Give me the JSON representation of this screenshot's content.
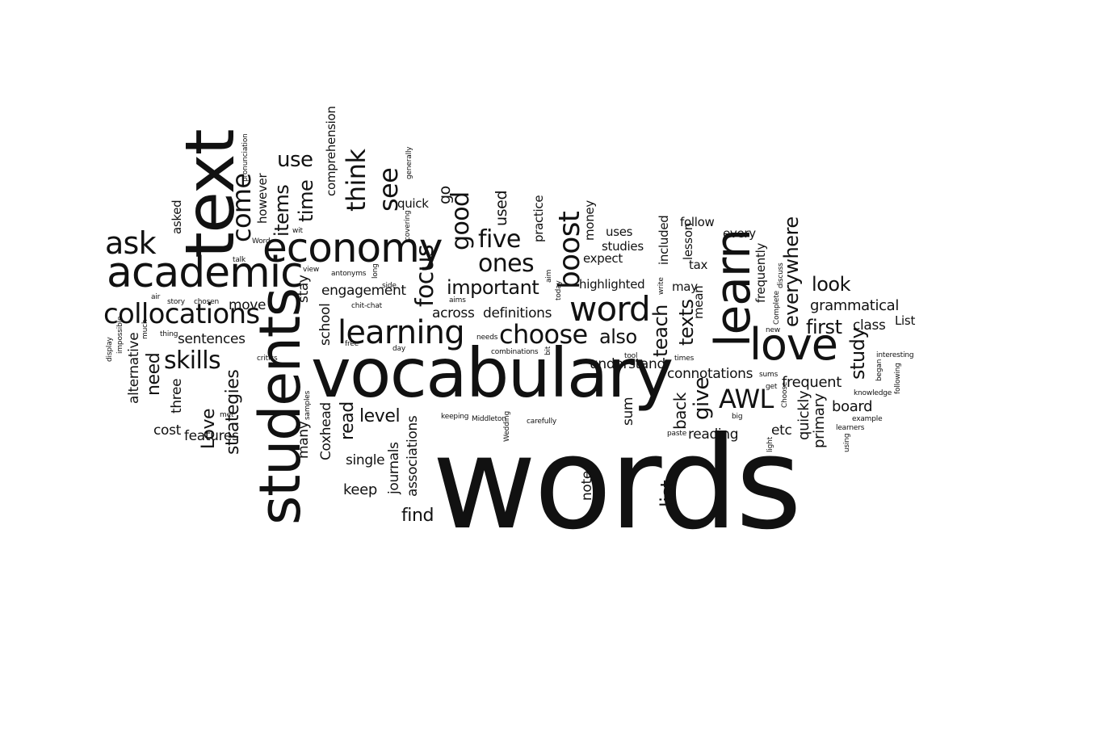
{
  "cloud": {
    "text_color": "#111111",
    "background_color": "#ffffff",
    "words": [
      "words",
      "vocabulary",
      "students",
      "text",
      "learn",
      "academic",
      "economy",
      "love",
      "word",
      "learning",
      "ask",
      "collocations",
      "choose",
      "focus",
      "good",
      "five",
      "ones",
      "important",
      "boost",
      "AWL",
      "skills",
      "come",
      "think",
      "see",
      "use",
      "items",
      "time",
      "first",
      "look",
      "everywhere",
      "study",
      "give",
      "texts",
      "teach",
      "also",
      "back",
      "list",
      "read",
      "level",
      "keep",
      "find",
      "single",
      "journals",
      "associations",
      "note",
      "sum",
      "reading",
      "etc",
      "quickly",
      "primary",
      "board",
      "frequent",
      "grammatical",
      "class",
      "List",
      "interesting",
      "following",
      "example",
      "learners",
      "using",
      "began",
      "knowledge",
      "connotations",
      "understand",
      "definitions",
      "across",
      "engagement",
      "school",
      "stay",
      "strategies",
      "Love",
      "features",
      "three",
      "need",
      "sentences",
      "move",
      "cost",
      "many",
      "Coxhead",
      "comprehension",
      "however",
      "pronunciation",
      "quick",
      "go",
      "used",
      "practice",
      "money",
      "uses",
      "studies",
      "expect",
      "highlighted",
      "included",
      "lesson",
      "follow",
      "every",
      "tax",
      "may",
      "mean",
      "frequently",
      "discuss",
      "Complete",
      "new",
      "sums",
      "get",
      "light",
      "Choose",
      "big",
      "Wedding",
      "carefully",
      "Middleton",
      "keeping",
      "combinations",
      "needs",
      "tool",
      "times",
      "paste",
      "bit",
      "aim",
      "today",
      "aims",
      "day",
      "free",
      "critics",
      "samples",
      "met",
      "much",
      "impossible",
      "alternative",
      "display",
      "thing",
      "air",
      "story",
      "chosen",
      "view",
      "antonyms",
      "side",
      "long",
      "chit-chat",
      "talk",
      "Word",
      "wit",
      "asked",
      "covering",
      "generally",
      "write"
    ]
  }
}
